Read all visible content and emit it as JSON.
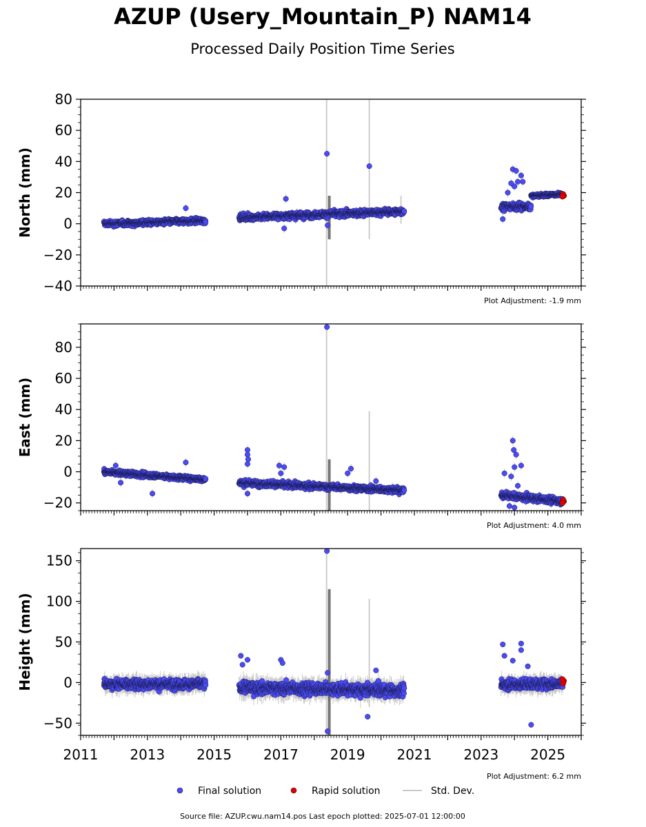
{
  "title": "AZUP (Usery_Mountain_P) NAM14",
  "subtitle": "Processed Daily Position Time Series",
  "footer": "Source file: AZUP.cwu.nam14.pos  Last epoch plotted: 2025-07-01 12:00:00",
  "legend": {
    "final": "Final solution",
    "rapid": "Rapid solution",
    "std": "Std. Dev."
  },
  "colors": {
    "final": "#4b4bf5",
    "rapid": "#e00000",
    "std": "#c8c8c8",
    "stdDark": "#555555"
  },
  "chart_data": [
    {
      "type": "scatter",
      "ylabel": "North (mm)",
      "adjustment": "Plot Adjustment: -1.9 mm",
      "xlim": [
        2011,
        2026
      ],
      "ylim": [
        -40,
        80
      ],
      "yticks": [
        -40,
        -20,
        0,
        20,
        40,
        60,
        80
      ],
      "segments": [
        {
          "t0": 2011.7,
          "t1": 2014.75,
          "y0": 0,
          "y1": 2,
          "noise": 1.4,
          "err": 1.5
        },
        {
          "t0": 2015.75,
          "t1": 2020.7,
          "y0": 4,
          "y1": 8,
          "noise": 1.6,
          "err": 2
        },
        {
          "t0": 2023.6,
          "t1": 2024.5,
          "y0": 11,
          "y1": 11,
          "noise": 1.8,
          "err": 2
        },
        {
          "t0": 2024.5,
          "t1": 2025.45,
          "y0": 18,
          "y1": 19,
          "noise": 0.8,
          "err": 1.5
        }
      ],
      "outliers": [
        {
          "x": 2014.15,
          "y": 10
        },
        {
          "x": 2017.1,
          "y": -3
        },
        {
          "x": 2017.15,
          "y": 16
        },
        {
          "x": 2018.38,
          "y": 45
        },
        {
          "x": 2018.4,
          "y": -1
        },
        {
          "x": 2019.65,
          "y": 37
        },
        {
          "x": 2023.65,
          "y": 3
        },
        {
          "x": 2023.95,
          "y": 35
        },
        {
          "x": 2024.05,
          "y": 34
        },
        {
          "x": 2024.1,
          "y": 27
        },
        {
          "x": 2024.2,
          "y": 31
        },
        {
          "x": 2024.0,
          "y": 24
        },
        {
          "x": 2023.8,
          "y": 20
        },
        {
          "x": 2023.9,
          "y": 26
        },
        {
          "x": 2024.25,
          "y": 27
        }
      ],
      "bigErrors": [
        {
          "x": 2018.37,
          "lo": -40,
          "hi": 80,
          "dark": false
        },
        {
          "x": 2018.45,
          "lo": -10,
          "hi": 18,
          "dark": true
        },
        {
          "x": 2019.65,
          "lo": -10,
          "hi": 80,
          "dark": false
        },
        {
          "x": 2020.6,
          "lo": 0,
          "hi": 18,
          "dark": false
        }
      ],
      "rapid": [
        {
          "x": 2025.48,
          "y": 18
        },
        {
          "x": 2025.46,
          "y": 19
        },
        {
          "x": 2025.44,
          "y": 17.5
        }
      ]
    },
    {
      "type": "scatter",
      "ylabel": "East (mm)",
      "adjustment": "Plot Adjustment: 4.0 mm",
      "xlim": [
        2011,
        2026
      ],
      "ylim": [
        -25,
        95
      ],
      "yticks": [
        -20,
        0,
        20,
        40,
        60,
        80
      ],
      "segments": [
        {
          "t0": 2011.7,
          "t1": 2014.75,
          "y0": 0,
          "y1": -5,
          "noise": 1.2,
          "err": 1.5
        },
        {
          "t0": 2015.75,
          "t1": 2020.7,
          "y0": -7,
          "y1": -12,
          "noise": 1.5,
          "err": 2
        },
        {
          "t0": 2023.6,
          "t1": 2025.45,
          "y0": -15,
          "y1": -19,
          "noise": 1.6,
          "err": 2
        }
      ],
      "outliers": [
        {
          "x": 2012.05,
          "y": 4
        },
        {
          "x": 2012.2,
          "y": -7
        },
        {
          "x": 2013.15,
          "y": -14
        },
        {
          "x": 2014.15,
          "y": 6
        },
        {
          "x": 2016.0,
          "y": 14
        },
        {
          "x": 2016.0,
          "y": 11
        },
        {
          "x": 2016.02,
          "y": 8
        },
        {
          "x": 2016.0,
          "y": 5
        },
        {
          "x": 2016.0,
          "y": -14
        },
        {
          "x": 2016.95,
          "y": 4
        },
        {
          "x": 2017.1,
          "y": 3
        },
        {
          "x": 2017.0,
          "y": -1
        },
        {
          "x": 2018.38,
          "y": 93
        },
        {
          "x": 2019.0,
          "y": -1
        },
        {
          "x": 2019.1,
          "y": 2
        },
        {
          "x": 2019.85,
          "y": -6
        },
        {
          "x": 2023.7,
          "y": -1
        },
        {
          "x": 2023.95,
          "y": 20
        },
        {
          "x": 2023.98,
          "y": 14
        },
        {
          "x": 2024.05,
          "y": 11
        },
        {
          "x": 2024.0,
          "y": 3
        },
        {
          "x": 2023.9,
          "y": -3
        },
        {
          "x": 2024.1,
          "y": -9
        },
        {
          "x": 2024.2,
          "y": 4
        },
        {
          "x": 2023.85,
          "y": -22
        },
        {
          "x": 2024.0,
          "y": -23
        }
      ],
      "bigErrors": [
        {
          "x": 2018.37,
          "lo": -25,
          "hi": 95,
          "dark": false
        },
        {
          "x": 2018.45,
          "lo": -25,
          "hi": 8,
          "dark": true
        },
        {
          "x": 2019.65,
          "lo": -25,
          "hi": 39,
          "dark": false
        }
      ],
      "rapid": [
        {
          "x": 2025.48,
          "y": -19
        },
        {
          "x": 2025.46,
          "y": -18
        },
        {
          "x": 2025.44,
          "y": -20
        }
      ]
    },
    {
      "type": "scatter",
      "ylabel": "Height (mm)",
      "adjustment": "Plot Adjustment: 6.2 mm",
      "xlim": [
        2011,
        2026
      ],
      "ylim": [
        -65,
        165
      ],
      "yticks": [
        -50,
        0,
        50,
        100,
        150
      ],
      "xticks": [
        2011,
        2013,
        2015,
        2017,
        2019,
        2021,
        2023,
        2025
      ],
      "segments": [
        {
          "t0": 2011.7,
          "t1": 2014.75,
          "y0": -2,
          "y1": -2,
          "noise": 5,
          "err": 8
        },
        {
          "t0": 2015.75,
          "t1": 2020.7,
          "y0": -6,
          "y1": -10,
          "noise": 6,
          "err": 9
        },
        {
          "t0": 2023.6,
          "t1": 2025.45,
          "y0": -3,
          "y1": -1,
          "noise": 5,
          "err": 8
        }
      ],
      "outliers": [
        {
          "x": 2015.8,
          "y": 33
        },
        {
          "x": 2015.85,
          "y": 22
        },
        {
          "x": 2016.0,
          "y": 28
        },
        {
          "x": 2017.0,
          "y": 28
        },
        {
          "x": 2017.05,
          "y": 24
        },
        {
          "x": 2018.38,
          "y": 162
        },
        {
          "x": 2018.4,
          "y": 12
        },
        {
          "x": 2018.4,
          "y": -60
        },
        {
          "x": 2019.6,
          "y": -42
        },
        {
          "x": 2019.85,
          "y": 15
        },
        {
          "x": 2023.65,
          "y": 47
        },
        {
          "x": 2023.7,
          "y": 33
        },
        {
          "x": 2023.95,
          "y": 27
        },
        {
          "x": 2024.2,
          "y": 48
        },
        {
          "x": 2024.2,
          "y": 40
        },
        {
          "x": 2024.5,
          "y": -52
        },
        {
          "x": 2024.4,
          "y": 20
        }
      ],
      "bigErrors": [
        {
          "x": 2018.37,
          "lo": -65,
          "hi": 165,
          "dark": false
        },
        {
          "x": 2018.45,
          "lo": -65,
          "hi": 115,
          "dark": true
        },
        {
          "x": 2019.65,
          "lo": -30,
          "hi": 103,
          "dark": false
        }
      ],
      "rapid": [
        {
          "x": 2025.48,
          "y": 2
        },
        {
          "x": 2025.46,
          "y": -1
        },
        {
          "x": 2025.44,
          "y": 4
        }
      ]
    }
  ]
}
